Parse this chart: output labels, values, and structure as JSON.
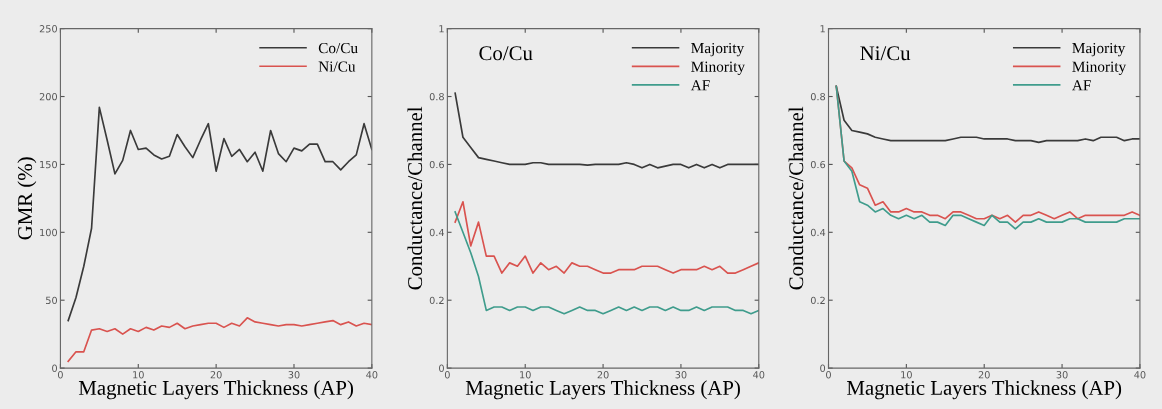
{
  "chart_data": [
    {
      "type": "line",
      "xlabel": "Magnetic Layers Thickness (AP)",
      "ylabel": "GMR (%)",
      "x": [
        1,
        2,
        3,
        4,
        5,
        6,
        7,
        8,
        9,
        10,
        11,
        12,
        13,
        14,
        15,
        16,
        17,
        18,
        19,
        20,
        21,
        22,
        23,
        24,
        25,
        26,
        27,
        28,
        29,
        30,
        31,
        32,
        33,
        34,
        35,
        36,
        37,
        38,
        39,
        40
      ],
      "xlim": [
        0,
        40
      ],
      "xticks": [
        0,
        10,
        20,
        30,
        40
      ],
      "ylim": [
        0,
        250
      ],
      "yticks": [
        0,
        50,
        100,
        150,
        200,
        250
      ],
      "grid": false,
      "legend": "top right",
      "series": [
        {
          "name": "Co/Cu",
          "color": "#3a3a3a",
          "values": [
            35,
            52,
            75,
            103,
            192,
            168,
            143,
            153,
            175,
            161,
            162,
            157,
            154,
            156,
            172,
            163,
            155,
            168,
            180,
            145,
            169,
            156,
            161,
            152,
            159,
            145,
            175,
            158,
            152,
            162,
            160,
            165,
            165,
            152,
            152,
            146,
            152,
            157,
            180,
            161
          ]
        },
        {
          "name": "Ni/Cu",
          "color": "#d9534f",
          "values": [
            5,
            12,
            12,
            28,
            29,
            27,
            29,
            25,
            29,
            27,
            30,
            28,
            31,
            30,
            33,
            29,
            31,
            32,
            33,
            33,
            30,
            33,
            31,
            37,
            34,
            33,
            32,
            31,
            32,
            32,
            31,
            32,
            33,
            34,
            35,
            32,
            34,
            31,
            33,
            32
          ]
        }
      ]
    },
    {
      "type": "line",
      "title": "Co/Cu",
      "xlabel": "Magnetic Layers Thickness (AP)",
      "ylabel": "Conductance/Channel",
      "x": [
        1,
        2,
        3,
        4,
        5,
        6,
        7,
        8,
        9,
        10,
        11,
        12,
        13,
        14,
        15,
        16,
        17,
        18,
        19,
        20,
        21,
        22,
        23,
        24,
        25,
        26,
        27,
        28,
        29,
        30,
        31,
        32,
        33,
        34,
        35,
        36,
        37,
        38,
        39,
        40
      ],
      "xlim": [
        0,
        40
      ],
      "xticks": [
        0,
        10,
        20,
        30,
        40
      ],
      "ylim": [
        0,
        1
      ],
      "yticks": [
        0,
        0.2,
        0.4,
        0.6,
        0.8,
        1
      ],
      "grid": false,
      "legend": "top right",
      "series": [
        {
          "name": "Majority",
          "color": "#3a3a3a",
          "values": [
            0.81,
            0.68,
            0.65,
            0.62,
            0.615,
            0.61,
            0.605,
            0.6,
            0.6,
            0.6,
            0.605,
            0.605,
            0.6,
            0.6,
            0.6,
            0.6,
            0.6,
            0.598,
            0.6,
            0.6,
            0.6,
            0.6,
            0.605,
            0.6,
            0.59,
            0.6,
            0.59,
            0.595,
            0.6,
            0.6,
            0.59,
            0.6,
            0.59,
            0.6,
            0.59,
            0.6,
            0.6,
            0.6,
            0.6,
            0.6
          ]
        },
        {
          "name": "Minority",
          "color": "#d9534f",
          "values": [
            0.43,
            0.49,
            0.36,
            0.43,
            0.33,
            0.33,
            0.28,
            0.31,
            0.3,
            0.33,
            0.28,
            0.31,
            0.29,
            0.3,
            0.28,
            0.31,
            0.3,
            0.3,
            0.29,
            0.28,
            0.28,
            0.29,
            0.29,
            0.29,
            0.3,
            0.3,
            0.3,
            0.29,
            0.28,
            0.29,
            0.29,
            0.29,
            0.3,
            0.29,
            0.3,
            0.28,
            0.28,
            0.29,
            0.3,
            0.31
          ]
        },
        {
          "name": "AF",
          "color": "#3f9c8c",
          "values": [
            0.46,
            0.4,
            0.34,
            0.27,
            0.17,
            0.18,
            0.18,
            0.17,
            0.18,
            0.18,
            0.17,
            0.18,
            0.18,
            0.17,
            0.16,
            0.17,
            0.18,
            0.17,
            0.17,
            0.16,
            0.17,
            0.18,
            0.17,
            0.18,
            0.17,
            0.18,
            0.18,
            0.17,
            0.18,
            0.17,
            0.17,
            0.18,
            0.17,
            0.18,
            0.18,
            0.18,
            0.17,
            0.17,
            0.16,
            0.17
          ]
        }
      ]
    },
    {
      "type": "line",
      "title": "Ni/Cu",
      "xlabel": "Magnetic Layers Thickness (AP)",
      "ylabel": "Conductance/Channel",
      "x": [
        1,
        2,
        3,
        4,
        5,
        6,
        7,
        8,
        9,
        10,
        11,
        12,
        13,
        14,
        15,
        16,
        17,
        18,
        19,
        20,
        21,
        22,
        23,
        24,
        25,
        26,
        27,
        28,
        29,
        30,
        31,
        32,
        33,
        34,
        35,
        36,
        37,
        38,
        39,
        40
      ],
      "xlim": [
        0,
        40
      ],
      "xticks": [
        0,
        10,
        20,
        30,
        40
      ],
      "ylim": [
        0,
        1
      ],
      "yticks": [
        0,
        0.2,
        0.4,
        0.6,
        0.8,
        1
      ],
      "grid": false,
      "legend": "top right",
      "series": [
        {
          "name": "Majority",
          "color": "#3a3a3a",
          "values": [
            0.83,
            0.73,
            0.7,
            0.695,
            0.69,
            0.68,
            0.675,
            0.67,
            0.67,
            0.67,
            0.67,
            0.67,
            0.67,
            0.67,
            0.67,
            0.675,
            0.68,
            0.68,
            0.68,
            0.675,
            0.675,
            0.675,
            0.675,
            0.67,
            0.67,
            0.67,
            0.665,
            0.67,
            0.67,
            0.67,
            0.67,
            0.67,
            0.675,
            0.67,
            0.68,
            0.68,
            0.68,
            0.67,
            0.675,
            0.675
          ]
        },
        {
          "name": "Minority",
          "color": "#d9534f",
          "values": [
            0.83,
            0.61,
            0.59,
            0.54,
            0.53,
            0.48,
            0.49,
            0.46,
            0.46,
            0.47,
            0.46,
            0.46,
            0.45,
            0.45,
            0.44,
            0.46,
            0.46,
            0.45,
            0.44,
            0.44,
            0.45,
            0.44,
            0.45,
            0.43,
            0.45,
            0.45,
            0.46,
            0.45,
            0.44,
            0.45,
            0.46,
            0.44,
            0.45,
            0.45,
            0.45,
            0.45,
            0.45,
            0.45,
            0.46,
            0.45
          ]
        },
        {
          "name": "AF",
          "color": "#3f9c8c",
          "values": [
            0.83,
            0.61,
            0.58,
            0.49,
            0.48,
            0.46,
            0.47,
            0.45,
            0.44,
            0.45,
            0.44,
            0.45,
            0.43,
            0.43,
            0.42,
            0.45,
            0.45,
            0.44,
            0.43,
            0.42,
            0.45,
            0.43,
            0.43,
            0.41,
            0.43,
            0.43,
            0.44,
            0.43,
            0.43,
            0.43,
            0.44,
            0.44,
            0.43,
            0.43,
            0.43,
            0.43,
            0.43,
            0.44,
            0.44,
            0.44
          ]
        }
      ]
    }
  ]
}
